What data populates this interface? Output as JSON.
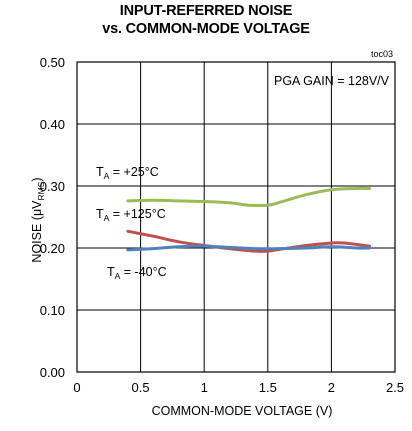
{
  "chart_data": {
    "type": "line",
    "title_line1": "INPUT-REFERRED NOISE",
    "title_line2": "vs. COMMON-MODE VOLTAGE",
    "figure_code": "toc03",
    "condition": "PGA GAIN = 128V/V",
    "xlabel": "COMMON-MODE VOLTAGE (V)",
    "ylabel_main": "NOISE (μV",
    "ylabel_sub": "RMS",
    "ylabel_end": ")",
    "xlim": [
      0,
      2.5
    ],
    "ylim": [
      0,
      0.5
    ],
    "x_ticks": [
      0,
      0.5,
      1,
      1.5,
      2,
      2.5
    ],
    "x_tick_labels": [
      "0",
      "0.5",
      "1",
      "1.5",
      "2",
      "2.5"
    ],
    "y_ticks": [
      0,
      0.1,
      0.2,
      0.3,
      0.4,
      0.5
    ],
    "y_tick_labels": [
      "0.00",
      "0.10",
      "0.20",
      "0.30",
      "0.40",
      "0.50"
    ],
    "grid": true,
    "series": [
      {
        "label_main": "T",
        "label_sub": "A",
        "label_rest": " = +25°C",
        "color": "#9bbb59",
        "x": [
          0.4,
          0.6,
          0.8,
          1.0,
          1.2,
          1.35,
          1.5,
          1.6,
          1.8,
          2.0,
          2.2,
          2.3
        ],
        "y": [
          0.276,
          0.277,
          0.276,
          0.275,
          0.273,
          0.269,
          0.269,
          0.274,
          0.286,
          0.294,
          0.296,
          0.296
        ]
      },
      {
        "label_main": "T",
        "label_sub": "A",
        "label_rest": " = +125°C",
        "color": "#c0504d",
        "x": [
          0.4,
          0.6,
          0.8,
          1.0,
          1.2,
          1.4,
          1.5,
          1.6,
          1.8,
          2.0,
          2.1,
          2.3
        ],
        "y": [
          0.227,
          0.219,
          0.21,
          0.204,
          0.199,
          0.195,
          0.195,
          0.198,
          0.204,
          0.208,
          0.208,
          0.203
        ]
      },
      {
        "label_main": "T",
        "label_sub": "A",
        "label_rest": " = -40°C",
        "color": "#4f81bd",
        "x": [
          0.4,
          0.6,
          0.8,
          1.0,
          1.2,
          1.4,
          1.6,
          1.8,
          2.0,
          2.2,
          2.3
        ],
        "y": [
          0.197,
          0.199,
          0.202,
          0.203,
          0.201,
          0.199,
          0.199,
          0.2,
          0.202,
          0.2,
          0.2
        ]
      }
    ]
  }
}
